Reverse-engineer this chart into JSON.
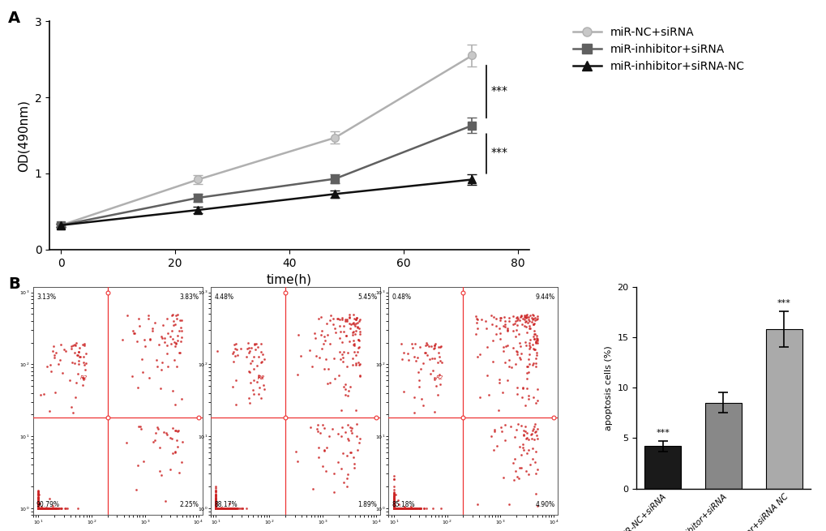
{
  "panel_A": {
    "time_points": [
      0,
      24,
      48,
      72
    ],
    "series": [
      {
        "label": "miR-NC+siRNA",
        "color": "#b0b0b0",
        "marker": "o",
        "markerfacecolor": "#c8c8c8",
        "values": [
          0.32,
          0.92,
          1.47,
          2.55
        ],
        "errors": [
          0.02,
          0.06,
          0.08,
          0.14
        ]
      },
      {
        "label": "miR-inhibitor+siRNA",
        "color": "#606060",
        "marker": "s",
        "markerfacecolor": "#606060",
        "values": [
          0.32,
          0.68,
          0.93,
          1.63
        ],
        "errors": [
          0.02,
          0.05,
          0.06,
          0.1
        ]
      },
      {
        "label": "miR-inhibitor+siRNA-NC",
        "color": "#101010",
        "marker": "^",
        "markerfacecolor": "#101010",
        "values": [
          0.32,
          0.52,
          0.73,
          0.92
        ],
        "errors": [
          0.02,
          0.04,
          0.05,
          0.07
        ]
      }
    ],
    "xlabel": "time(h)",
    "ylabel": "OD(490nm)",
    "ylim": [
      0,
      3
    ],
    "xlim": [
      -2,
      82
    ],
    "xticks": [
      0,
      20,
      40,
      60,
      80
    ],
    "yticks": [
      0,
      1,
      2,
      3
    ]
  },
  "panel_B_bar": {
    "categories": [
      "miR-NC+siRNA",
      "miR-inhibitor+siRNA",
      "miR-inhibitor+siRNA NC"
    ],
    "values": [
      4.2,
      8.5,
      15.8
    ],
    "errors": [
      0.5,
      1.0,
      1.8
    ],
    "colors": [
      "#1a1a1a",
      "#888888",
      "#aaaaaa"
    ],
    "ylabel": "apoptosis cells (%)",
    "ylim": [
      0,
      20
    ],
    "yticks": [
      0,
      5,
      10,
      15,
      20
    ],
    "bar_width": 0.6
  },
  "quadrant_labels": [
    [
      "3.13%",
      "3.83%",
      "90.79%",
      "2.25%"
    ],
    [
      "4.48%",
      "5.45%",
      "88.17%",
      "1.89%"
    ],
    [
      "0.48%",
      "9.44%",
      "85.18%",
      "4.90%"
    ]
  ],
  "background_color": "#ffffff"
}
